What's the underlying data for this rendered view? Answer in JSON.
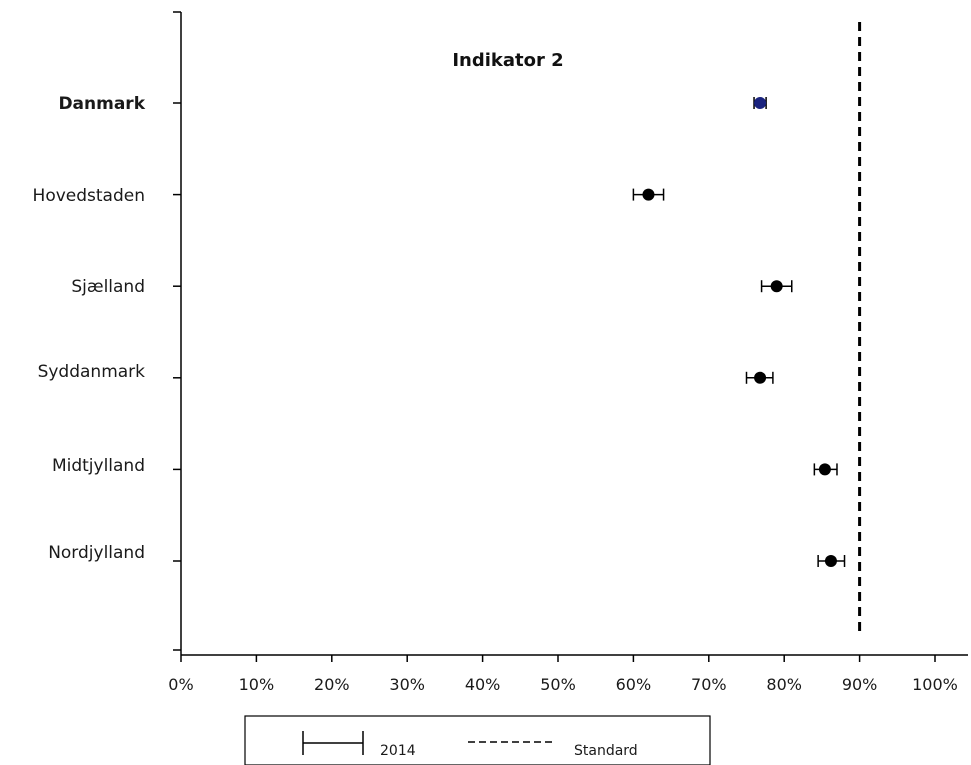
{
  "chart_data": {
    "type": "scatter",
    "title": "Indikator 2",
    "xlabel": "",
    "ylabel": "",
    "xlim": [
      0,
      100
    ],
    "x_ticks": [
      "0%",
      "10%",
      "20%",
      "30%",
      "40%",
      "50%",
      "60%",
      "70%",
      "80%",
      "90%",
      "100%"
    ],
    "categories": [
      "Danmark",
      "Hovedstaden",
      "Sjælland",
      "Syddanmark",
      "Midtjylland",
      "Nordjylland"
    ],
    "series": [
      {
        "name": "2014",
        "values": [
          76.8,
          62.0,
          79.0,
          76.8,
          85.4,
          86.2
        ],
        "ci_low": [
          76.0,
          60.0,
          77.0,
          75.0,
          84.0,
          84.5
        ],
        "ci_high": [
          77.6,
          64.0,
          81.0,
          78.5,
          87.0,
          88.0
        ],
        "point_colors": [
          "#1a237e",
          "#000000",
          "#000000",
          "#000000",
          "#000000",
          "#000000"
        ]
      }
    ],
    "standard": {
      "name": "Standard",
      "value": 90
    },
    "legend": {
      "position": "bottom",
      "entries": [
        "2014",
        "Standard"
      ]
    },
    "grid": false
  }
}
